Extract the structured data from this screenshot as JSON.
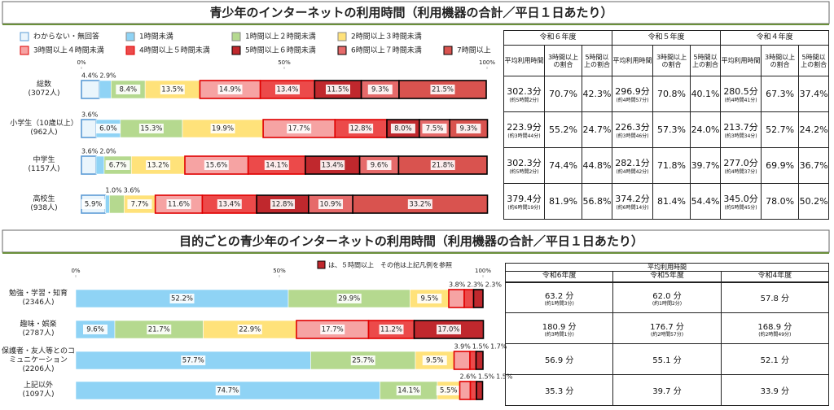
{
  "chart_data": [
    {
      "type": "bar",
      "horizontal": true,
      "stacked": true,
      "title": "青少年のインターネットの利用時間（利用機器の合計／平日１日あたり）",
      "categories": [
        "総数",
        "小学生（10歳以上）",
        "中学生",
        "高校生"
      ],
      "category_counts": [
        "(3072人)",
        "(962人)",
        "(1157人)",
        "(938人)"
      ],
      "xlim": [
        0,
        100
      ],
      "xticks": [
        {
          "value": 0,
          "label": "0%"
        },
        {
          "value": 50,
          "label": "50%"
        },
        {
          "value": 100,
          "label": "100%"
        }
      ],
      "series": [
        {
          "name": "わからない・無回答",
          "color": "#eaf5fc",
          "border": "#5b9bd5",
          "values": [
            4.4,
            3.6,
            3.6,
            5.9
          ],
          "value_labels": [
            "4.4%",
            "3.6%",
            "3.6%",
            "5.9%"
          ]
        },
        {
          "name": "1時間未満",
          "color": "#8fd3f5",
          "border": "#ffffff",
          "values": [
            2.9,
            6.0,
            2.0,
            1.0
          ],
          "value_labels": [
            "2.9%",
            "6.0%",
            "2.0%",
            "1.0%"
          ]
        },
        {
          "name": "1時間以上２時間未満",
          "color": "#b5d98f",
          "border": "#ffffff",
          "values": [
            8.4,
            15.3,
            6.7,
            3.6
          ],
          "value_labels": [
            "8.4%",
            "15.3%",
            "6.7%",
            "3.6%"
          ]
        },
        {
          "name": "2時間以上３時間未満",
          "color": "#ffe27a",
          "border": "#ffffff",
          "values": [
            13.5,
            19.9,
            13.2,
            7.7
          ],
          "value_labels": [
            "13.5%",
            "19.9%",
            "13.2%",
            "7.7%"
          ]
        },
        {
          "name": "3時間以上４時間未満",
          "color": "#f6a3a3",
          "border": "#e00000",
          "values": [
            14.9,
            17.7,
            15.6,
            11.6
          ],
          "value_labels": [
            "14.9%",
            "17.7%",
            "15.6%",
            "11.6%"
          ]
        },
        {
          "name": "4時間以上５時間未満",
          "color": "#ec4a4a",
          "border": "#e00000",
          "values": [
            13.4,
            12.8,
            14.1,
            13.4
          ],
          "value_labels": [
            "13.4%",
            "12.8%",
            "14.1%",
            "13.4%"
          ]
        },
        {
          "name": "5時間以上６時間未満",
          "color": "#c0282d",
          "border": "#000000",
          "values": [
            11.5,
            8.0,
            13.4,
            12.8
          ],
          "value_labels": [
            "11.5%",
            "8.0%",
            "13.4%",
            "12.8%"
          ]
        },
        {
          "name": "6時間以上７時間未満",
          "color": "#e66a6a",
          "border": "#000000",
          "values": [
            9.3,
            7.5,
            9.6,
            10.9
          ],
          "value_labels": [
            "9.3%",
            "7.5%",
            "9.6%",
            "10.9%"
          ]
        },
        {
          "name": "7時間以上",
          "color": "#d9534f",
          "border": "#000000",
          "values": [
            21.5,
            9.3,
            21.8,
            33.2
          ],
          "value_labels": [
            "21.5%",
            "9.3%",
            "21.8%",
            "33.2%"
          ]
        }
      ]
    },
    {
      "type": "bar",
      "horizontal": true,
      "stacked": true,
      "title": "目的ごとの青少年のインターネットの利用時間（利用機器の合計／平日１日あたり）",
      "note": "は、５時間以上　その他は上記凡例を参照",
      "categories": [
        "勉強・学習・知育",
        "趣味・娯楽",
        "保護者・友人等とのコミュニケーション",
        "上記以外"
      ],
      "category_counts": [
        "(2346人)",
        "(2787人)",
        "(2206人)",
        "(1097人)"
      ],
      "xlim": [
        0,
        100
      ],
      "xticks": [
        {
          "value": 0,
          "label": "0%"
        },
        {
          "value": 50,
          "label": "50%"
        },
        {
          "value": 100,
          "label": "100%"
        }
      ],
      "series": [
        {
          "color": "#8fd3f5",
          "border": "#ffffff",
          "values": [
            52.2,
            9.6,
            57.7,
            74.7
          ],
          "value_labels": [
            "52.2%",
            "9.6%",
            "57.7%",
            "74.7%"
          ]
        },
        {
          "color": "#b5d98f",
          "border": "#ffffff",
          "values": [
            29.9,
            21.7,
            25.7,
            14.1
          ],
          "value_labels": [
            "29.9%",
            "21.7%",
            "25.7%",
            "14.1%"
          ]
        },
        {
          "color": "#ffe27a",
          "border": "#ffffff",
          "values": [
            9.5,
            22.9,
            9.5,
            5.5
          ],
          "value_labels": [
            "9.5%",
            "22.9%",
            "9.5%",
            "5.5%"
          ]
        },
        {
          "color": "#f6a3a3",
          "border": "#e00000",
          "values": [
            3.8,
            17.7,
            3.9,
            2.6
          ],
          "value_labels": [
            "3.8%",
            "17.7%",
            "3.9%",
            "2.6%"
          ]
        },
        {
          "color": "#ec4a4a",
          "border": "#e00000",
          "values": [
            2.3,
            11.2,
            1.5,
            1.5
          ],
          "value_labels": [
            "2.3%",
            "11.2%",
            "1.5%",
            "1.5%"
          ]
        },
        {
          "color": "#c0282d",
          "border": "#000000",
          "values": [
            2.3,
            17.0,
            1.7,
            1.5
          ],
          "value_labels": [
            "2.3%",
            "17.0%",
            "1.7%",
            "1.5%"
          ]
        }
      ]
    }
  ],
  "table1": {
    "years": [
      "令和６年度",
      "令和５年度",
      "令和４年度"
    ],
    "subheaders": [
      "平均利用時間",
      "3時間以上の割合",
      "5時間以上の割合"
    ],
    "rows": [
      [
        "302.3分",
        "(約5時間2分)",
        "70.7%",
        "42.3%",
        "296.9分",
        "(約4時間57分)",
        "70.8%",
        "40.1%",
        "280.5分",
        "(約4時間41分)",
        "67.3%",
        "37.4%"
      ],
      [
        "223.9分",
        "(約3時間44分)",
        "55.2%",
        "24.7%",
        "226.3分",
        "(約3時間46分)",
        "57.3%",
        "24.0%",
        "213.7分",
        "(約3時間34分)",
        "52.7%",
        "24.2%"
      ],
      [
        "302.3分",
        "(約5時間2分)",
        "74.4%",
        "44.8%",
        "282.1分",
        "(約4時間42分)",
        "71.8%",
        "39.7%",
        "277.0分",
        "(約4時間37分)",
        "69.9%",
        "36.7%"
      ],
      [
        "379.4分",
        "(約6時間19分)",
        "81.9%",
        "56.8%",
        "374.2分",
        "(約6時間14分)",
        "81.4%",
        "54.4%",
        "345.0分",
        "(約5時間45分)",
        "78.0%",
        "50.2%"
      ]
    ]
  },
  "table2": {
    "header": "平均利用時間",
    "years": [
      "令和6年度",
      "令和5年度",
      "令和4年度"
    ],
    "rows": [
      [
        [
          "63.2 分",
          "(約1時間3分)"
        ],
        [
          "62.0 分",
          "(約1時間2分)"
        ],
        [
          "57.8 分"
        ]
      ],
      [
        [
          "180.9 分",
          "(約3時間1分)"
        ],
        [
          "176.7 分",
          "(約2時間57分)"
        ],
        [
          "168.9 分",
          "(約2時間49分)"
        ]
      ],
      [
        [
          "56.9 分"
        ],
        [
          "55.1 分"
        ],
        [
          "52.1 分"
        ]
      ],
      [
        [
          "35.3 分"
        ],
        [
          "39.7 分"
        ],
        [
          "33.9 分"
        ]
      ]
    ]
  }
}
